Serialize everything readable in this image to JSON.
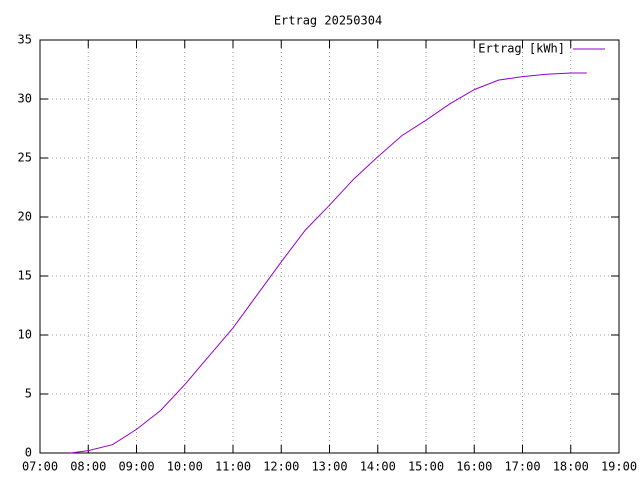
{
  "chart_data": {
    "type": "line",
    "title": "Ertrag 20250304",
    "x": [
      "07:38",
      "08:00",
      "08:30",
      "09:00",
      "09:30",
      "10:00",
      "10:30",
      "11:00",
      "11:30",
      "12:00",
      "12:30",
      "13:00",
      "13:30",
      "14:00",
      "14:30",
      "15:00",
      "15:30",
      "16:00",
      "16:30",
      "17:00",
      "17:30",
      "18:00",
      "18:20"
    ],
    "series": [
      {
        "name": "Ertrag [kWh]",
        "color": "#9400d3",
        "values": [
          0,
          0.2,
          0.7,
          2.0,
          3.6,
          5.8,
          8.2,
          10.6,
          13.4,
          16.2,
          18.9,
          21.0,
          23.2,
          25.1,
          26.9,
          28.2,
          29.6,
          30.8,
          31.6,
          31.9,
          32.1,
          32.2,
          32.2
        ]
      }
    ],
    "xlim": [
      "07:00",
      "19:00"
    ],
    "xticks": [
      "07:00",
      "08:00",
      "09:00",
      "10:00",
      "11:00",
      "12:00",
      "13:00",
      "14:00",
      "15:00",
      "16:00",
      "17:00",
      "18:00",
      "19:00"
    ],
    "ylim": [
      0,
      35
    ],
    "yticks": [
      0,
      5,
      10,
      15,
      20,
      25,
      30,
      35
    ],
    "grid": true,
    "legend": "top-right"
  }
}
